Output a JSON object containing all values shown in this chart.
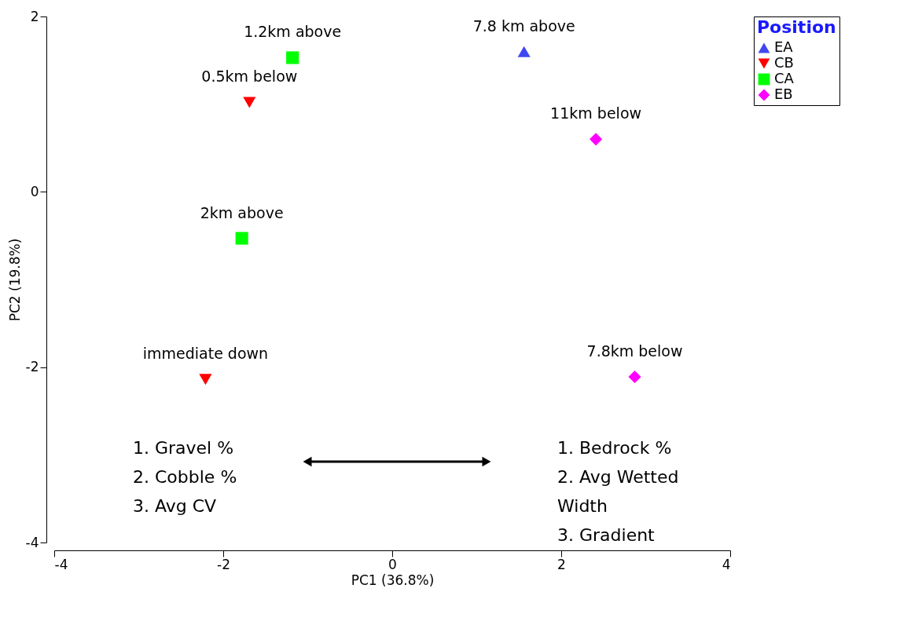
{
  "chart_data": {
    "type": "scatter",
    "xlabel": "PC1 (36.8%)",
    "ylabel": "PC2 (19.8%)",
    "legend_title": "Position",
    "legend": "top right",
    "grid": false,
    "xlim": [
      -4,
      4
    ],
    "xticks": [
      -4,
      -2,
      0,
      2,
      4
    ],
    "ylim": [
      -4,
      2
    ],
    "yticks": [
      -4,
      -2,
      0,
      2
    ],
    "series": [
      {
        "name": "EA",
        "color": "#3f48f0",
        "marker": "triangle",
        "x": [
          1.56
        ],
        "values": [
          1.6
        ]
      },
      {
        "name": "CB",
        "color": "#ff0000",
        "marker": "triangle-down",
        "x": [
          -1.69,
          -2.21
        ],
        "values": [
          1.02,
          -2.14
        ]
      },
      {
        "name": "CA",
        "color": "#00ff00",
        "marker": "square",
        "x": [
          -1.18,
          -1.78
        ],
        "values": [
          1.53,
          -0.53
        ]
      },
      {
        "name": "EB",
        "color": "#ff00ff",
        "marker": "diamond",
        "x": [
          2.41,
          2.87
        ],
        "values": [
          0.6,
          -2.11
        ]
      }
    ],
    "annotations": [
      {
        "text": "7.8 km above",
        "x": 1.56,
        "y": 1.6
      },
      {
        "text": "0.5km below",
        "x": -1.69,
        "y": 1.02
      },
      {
        "text": "immediate down",
        "x": -2.21,
        "y": -2.14
      },
      {
        "text": "1.2km above",
        "x": -1.18,
        "y": 1.53
      },
      {
        "text": "2km above",
        "x": -1.78,
        "y": -0.53
      },
      {
        "text": "11km below",
        "x": 2.41,
        "y": 0.6
      },
      {
        "text": "7.8km below",
        "x": 2.87,
        "y": -2.11
      },
      "1.   Gravel %\n2.   Cobble %\n3.   Avg CV",
      "1.   Bedrock %\n2.   Avg Wetted\n      Width\n3.   Gradient"
    ]
  }
}
